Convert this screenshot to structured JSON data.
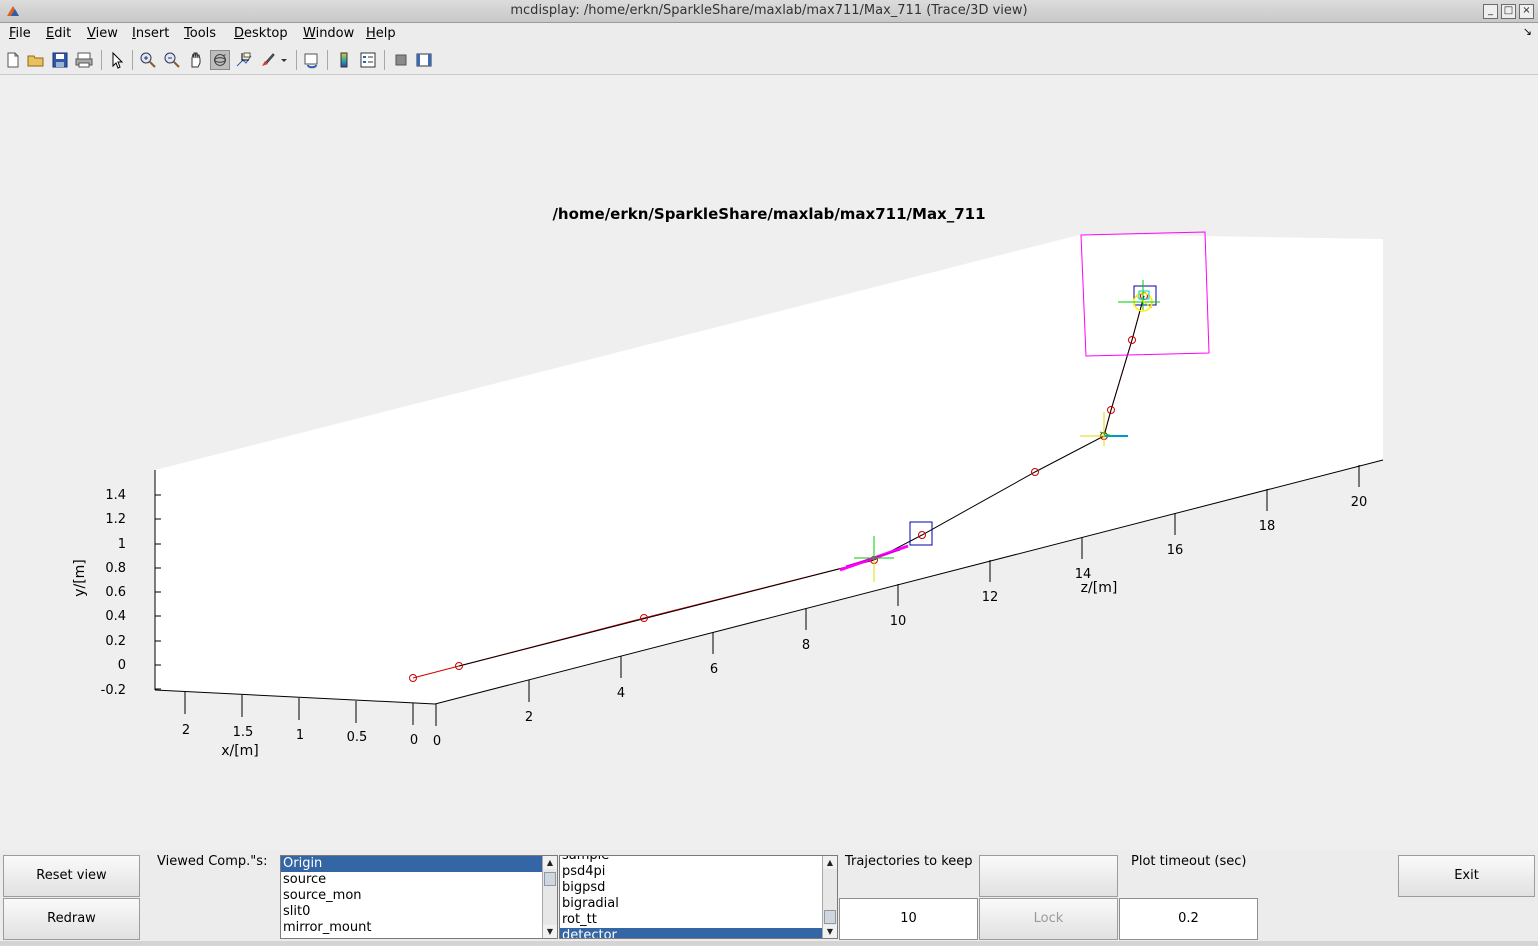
{
  "window": {
    "title": "mcdisplay: /home/erkn/SparkleShare/maxlab/max711/Max_711 (Trace/3D view)"
  },
  "menu": [
    {
      "label": "File",
      "u": "F",
      "rest": "ile"
    },
    {
      "label": "Edit",
      "u": "E",
      "rest": "dit"
    },
    {
      "label": "View",
      "u": "V",
      "rest": "iew"
    },
    {
      "label": "Insert",
      "u": "I",
      "rest": "nsert"
    },
    {
      "label": "Tools",
      "u": "T",
      "rest": "ools"
    },
    {
      "label": "Desktop",
      "u": "D",
      "rest": "esktop"
    },
    {
      "label": "Window",
      "u": "W",
      "rest": "indow"
    },
    {
      "label": "Help",
      "u": "H",
      "rest": "elp"
    }
  ],
  "toolbar_icons": [
    "new-figure-icon",
    "open-file-icon",
    "save-icon",
    "print-icon",
    "select-arrow-icon",
    "zoom-in-icon",
    "zoom-out-icon",
    "pan-hand-icon",
    "rotate-3d-icon",
    "data-cursor-icon",
    "brush-icon",
    "brush-dropdown-icon",
    "link-plot-icon",
    "colorbar-icon",
    "legend-icon",
    "hide-plot-tools-icon",
    "show-plot-tools-icon"
  ],
  "plot": {
    "title": "/home/erkn/SparkleShare/maxlab/max711/Max_711",
    "x_axis": {
      "label": "x/[m]",
      "ticks": [
        "2",
        "1.5",
        "1",
        "0.5",
        "0"
      ]
    },
    "y_axis": {
      "label": "y/[m]",
      "ticks": [
        "1.4",
        "1.2",
        "1",
        "0.8",
        "0.6",
        "0.4",
        "0.2",
        "0",
        "-0.2"
      ]
    },
    "z_axis": {
      "label": "z/[m]",
      "ticks": [
        "0",
        "2",
        "4",
        "6",
        "8",
        "10",
        "12",
        "14",
        "16",
        "18",
        "20"
      ]
    },
    "colors": {
      "trace": "#cc0000",
      "beam": "#000000",
      "detector": "#ff00ff",
      "monitor": "#0000aa"
    }
  },
  "controls": {
    "reset_view": "Reset view",
    "redraw": "Redraw",
    "viewed_label": "Viewed Comp.\"s:",
    "list1": [
      "Origin",
      "source",
      "source_mon",
      "slit0",
      "mirror_mount"
    ],
    "list1_selected": 0,
    "list2_partial": "sample",
    "list2": [
      "psd4pi",
      "bigpsd",
      "bigradial",
      "rot_tt",
      "detector"
    ],
    "list2_selected": 4,
    "trajectories_label": "Trajectories to keep",
    "trajectories_value": "10",
    "lock": "Lock",
    "timeout_label": "Plot timeout (sec)",
    "timeout_value": "0.2",
    "exit": "Exit"
  }
}
